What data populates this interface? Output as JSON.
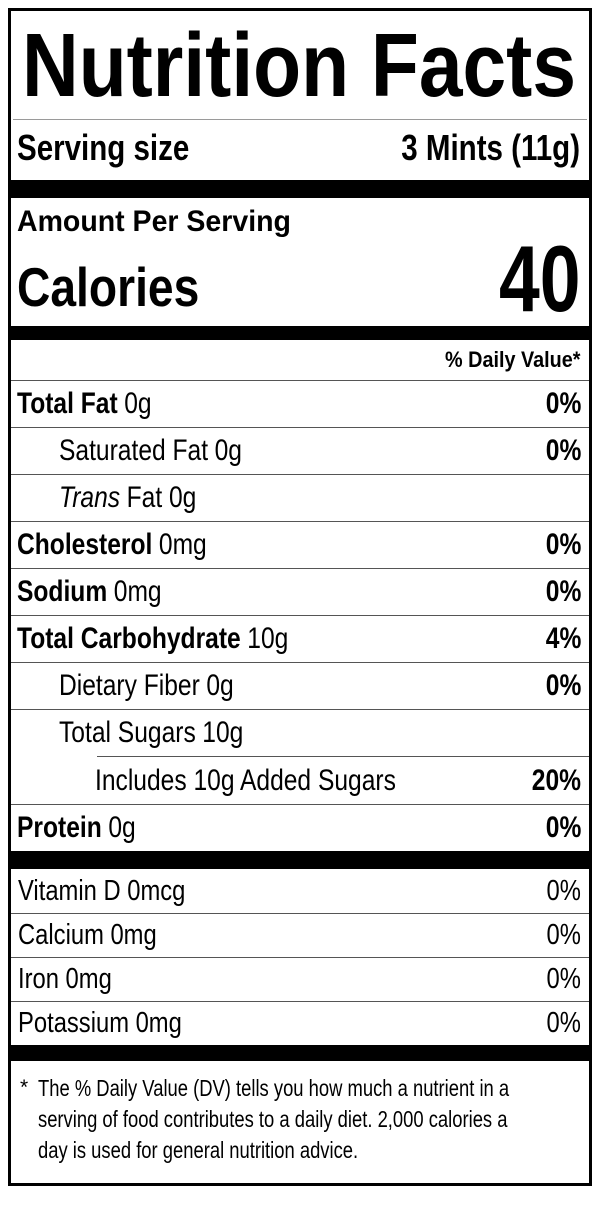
{
  "label": {
    "title": "Nutrition Facts",
    "serving": {
      "label": "Serving size",
      "value": "3 Mints (11g)"
    },
    "calories": {
      "heading": "Amount Per Serving",
      "label": "Calories",
      "value": "40"
    },
    "daily_value_heading": "% Daily Value*",
    "nutrients": [
      {
        "name": "Total Fat",
        "amount": "0g",
        "dv": "0%"
      },
      {
        "name": "Saturated Fat",
        "amount": "0g",
        "dv": "0%"
      },
      {
        "name_italic": "Trans",
        "name_rest": "Fat 0g",
        "dv": ""
      },
      {
        "name": "Cholesterol",
        "amount": "0mg",
        "dv": "0%"
      },
      {
        "name": "Sodium",
        "amount": "0mg",
        "dv": "0%"
      },
      {
        "name": "Total Carbohydrate",
        "amount": "10g",
        "dv": "4%"
      },
      {
        "name": "Dietary Fiber",
        "amount": "0g",
        "dv": "0%"
      },
      {
        "name": "Total Sugars",
        "amount": "10g",
        "dv": ""
      },
      {
        "name": "Includes 10g Added Sugars",
        "amount": "",
        "dv": "20%"
      },
      {
        "name": "Protein",
        "amount": "0g",
        "dv": "0%"
      }
    ],
    "micronutrients": [
      {
        "name": "Vitamin D",
        "amount": "0mcg",
        "dv": "0%"
      },
      {
        "name": "Calcium",
        "amount": "0mg",
        "dv": "0%"
      },
      {
        "name": "Iron",
        "amount": "0mg",
        "dv": "0%"
      },
      {
        "name": "Potassium",
        "amount": "0mg",
        "dv": "0%"
      }
    ],
    "footnote": {
      "marker": "*",
      "lines": [
        "The % Daily Value (DV) tells you how much a nutrient in a",
        "serving of food contributes to a daily diet. 2,000 calories a",
        "day is used for general nutrition advice."
      ]
    },
    "colors": {
      "ink": "#000000",
      "background": "#ffffff",
      "hairline": "#555555"
    }
  }
}
